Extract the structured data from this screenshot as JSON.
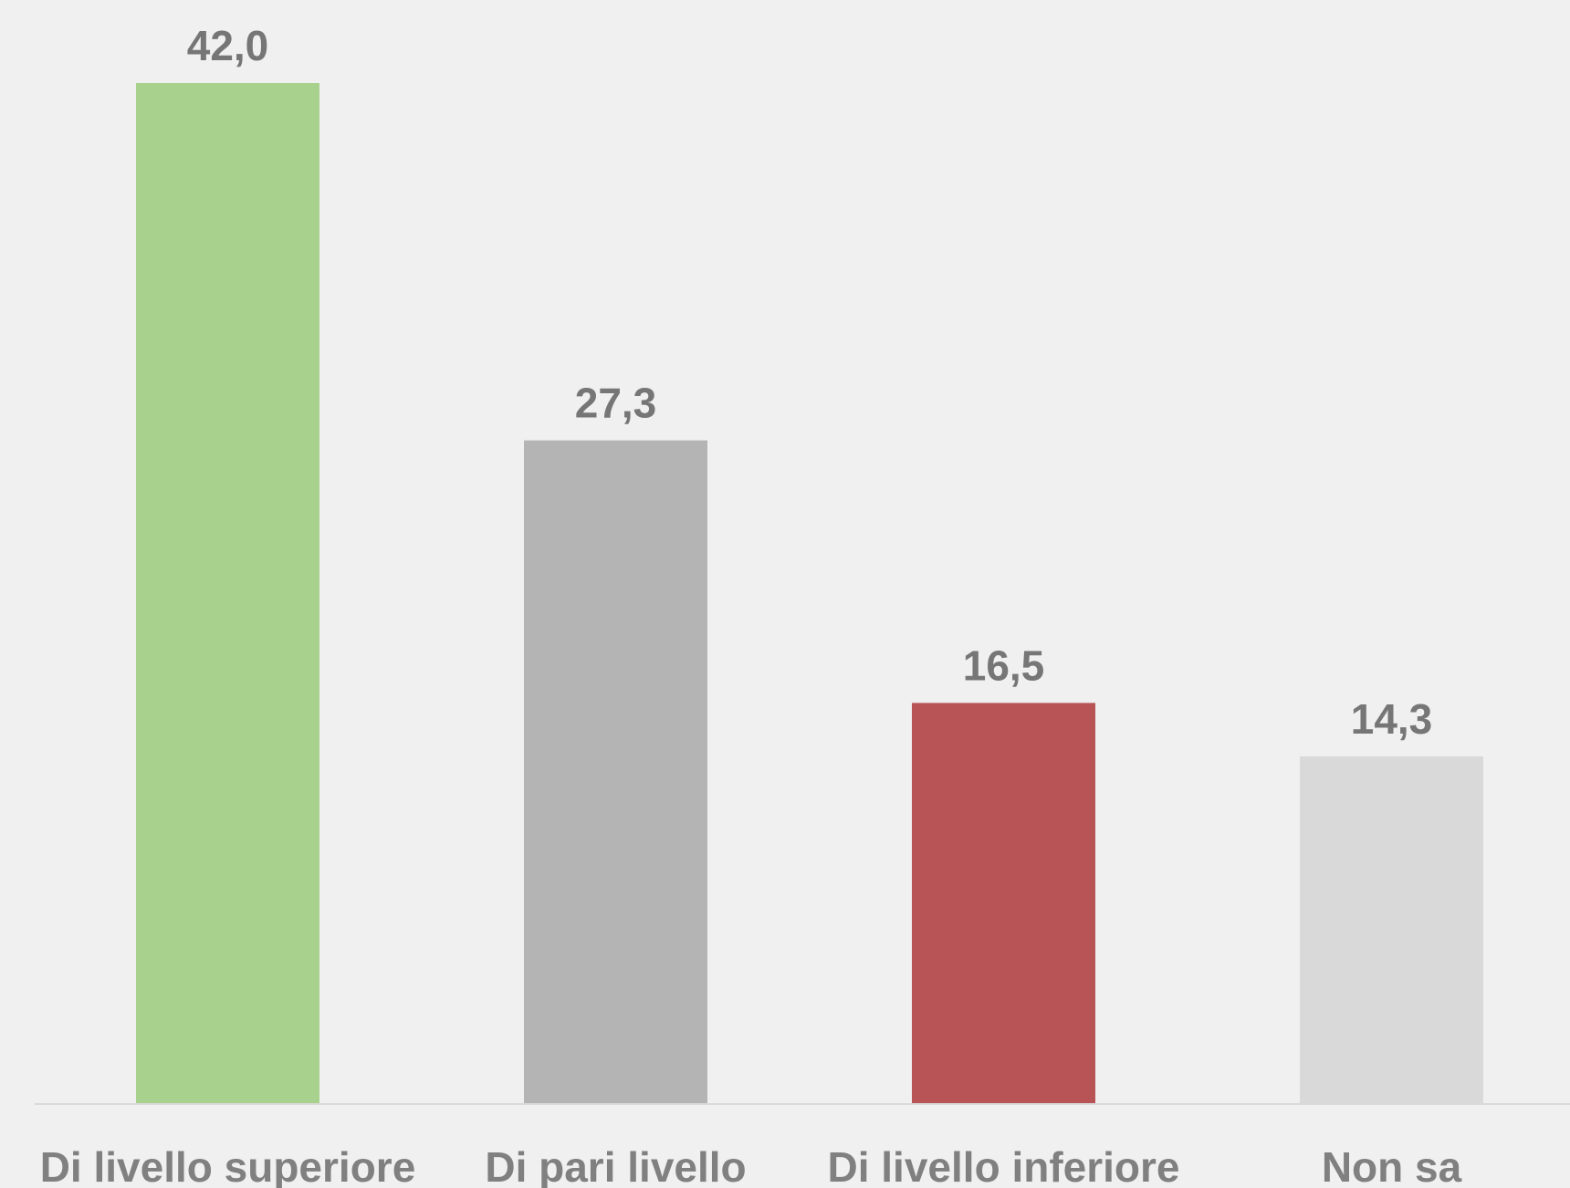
{
  "chart_data": {
    "type": "bar",
    "categories": [
      "Di livello superiore",
      "Di pari livello",
      "Di livello inferiore",
      "Non sa"
    ],
    "values": [
      42.0,
      27.3,
      16.5,
      14.3
    ],
    "value_labels": [
      "42,0",
      "27,3",
      "16,5",
      "14,3"
    ],
    "colors": [
      "#a9d18e",
      "#b4b4b4",
      "#b85456",
      "#d9d9d9"
    ],
    "ylim": [
      0,
      42.0
    ],
    "grid": false,
    "legend": "none",
    "title": "",
    "xlabel": "",
    "ylabel": ""
  }
}
